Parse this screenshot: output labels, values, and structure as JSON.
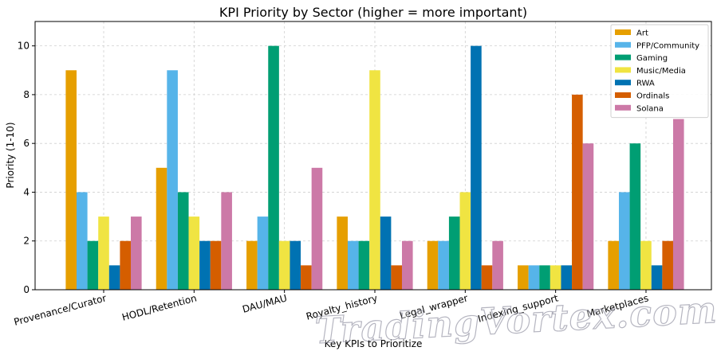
{
  "chart_data": {
    "type": "bar",
    "title": "KPI Priority by Sector (higher = more important)",
    "xlabel": "Key KPIs to Prioritize",
    "ylabel": "Priority (1-10)",
    "ylim": [
      0,
      11
    ],
    "yticks": [
      0,
      2,
      4,
      6,
      8,
      10
    ],
    "grid": true,
    "legend_position": "top-right",
    "categories": [
      "Provenance/Curator",
      "HODL/Retention",
      "DAU/MAU",
      "Royalty_history",
      "Legal_wrapper",
      "Indexing_support",
      "Marketplaces"
    ],
    "series": [
      {
        "name": "Art",
        "color": "#E69F00",
        "values": [
          9,
          5,
          2,
          3,
          2,
          1,
          2
        ]
      },
      {
        "name": "PFP/Community",
        "color": "#56B4E9",
        "values": [
          4,
          9,
          3,
          2,
          2,
          1,
          4
        ]
      },
      {
        "name": "Gaming",
        "color": "#009E73",
        "values": [
          2,
          4,
          10,
          2,
          3,
          1,
          6
        ]
      },
      {
        "name": "Music/Media",
        "color": "#F0E442",
        "values": [
          3,
          3,
          2,
          9,
          4,
          1,
          2
        ]
      },
      {
        "name": "RWA",
        "color": "#0072B2",
        "values": [
          1,
          2,
          2,
          3,
          10,
          1,
          1
        ]
      },
      {
        "name": "Ordinals",
        "color": "#D55E00",
        "values": [
          2,
          2,
          1,
          1,
          1,
          8,
          2
        ]
      },
      {
        "name": "Solana",
        "color": "#CC79A7",
        "values": [
          3,
          4,
          5,
          2,
          2,
          6,
          7
        ]
      }
    ]
  },
  "watermark": "TradingVortex.com"
}
